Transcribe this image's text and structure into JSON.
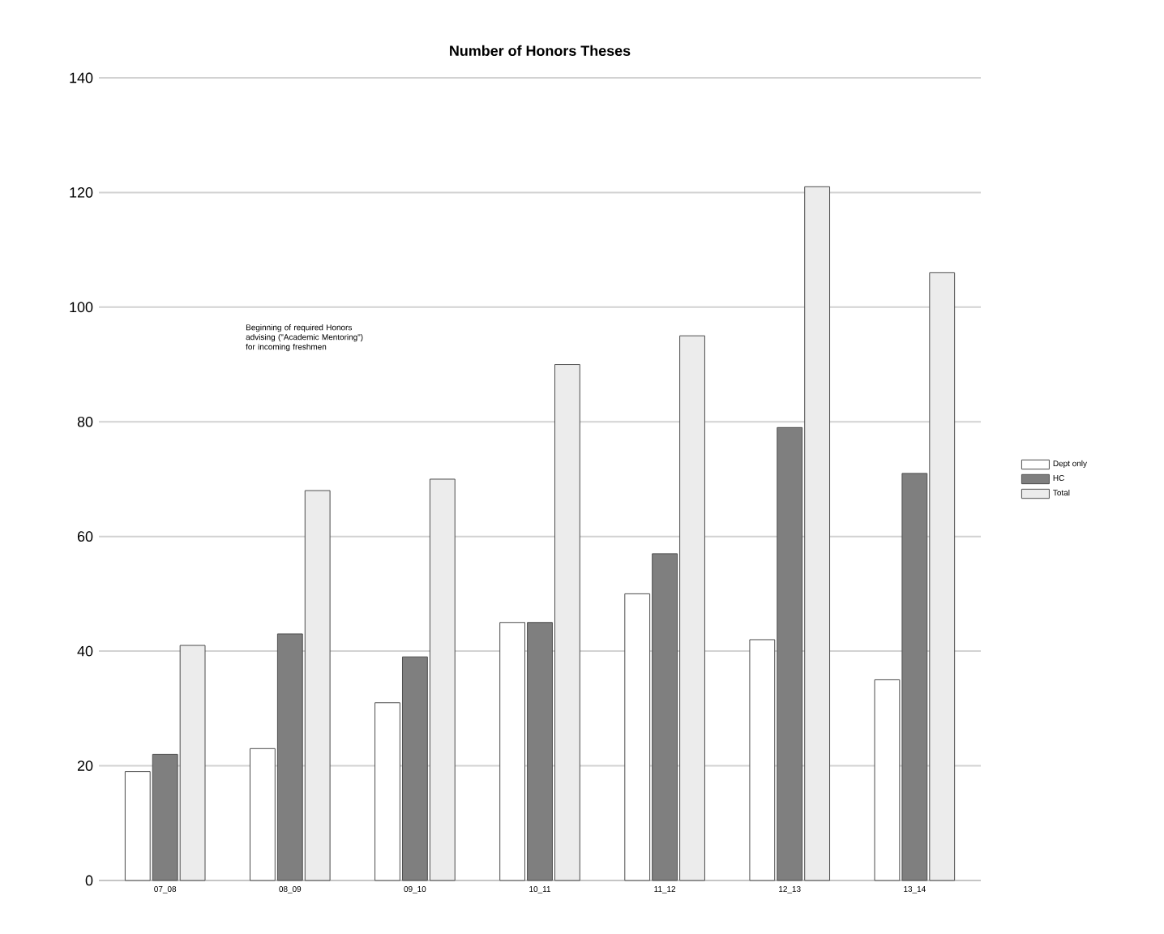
{
  "chart_data": {
    "type": "bar",
    "title": "Number of Honors Theses",
    "categories": [
      "07_08",
      "08_09",
      "09_10",
      "10_11",
      "11_12",
      "12_13",
      "13_14"
    ],
    "series": [
      {
        "name": "Dept only",
        "color": "#ffffff",
        "values": [
          19,
          23,
          31,
          45,
          50,
          42,
          35
        ]
      },
      {
        "name": "HC",
        "color": "#7f7f7f",
        "values": [
          22,
          43,
          39,
          45,
          57,
          79,
          71
        ]
      },
      {
        "name": "Total",
        "color": "#ececec",
        "values": [
          41,
          68,
          70,
          90,
          95,
          121,
          106
        ]
      }
    ],
    "ylim": [
      0,
      140
    ],
    "yticks": [
      0,
      20,
      40,
      60,
      80,
      100,
      120,
      140
    ],
    "grid": "y",
    "legend": "right",
    "annotations": [
      "Beginning of required Honors advising (\"Academic Mentoring\") for incoming freshmen"
    ]
  }
}
